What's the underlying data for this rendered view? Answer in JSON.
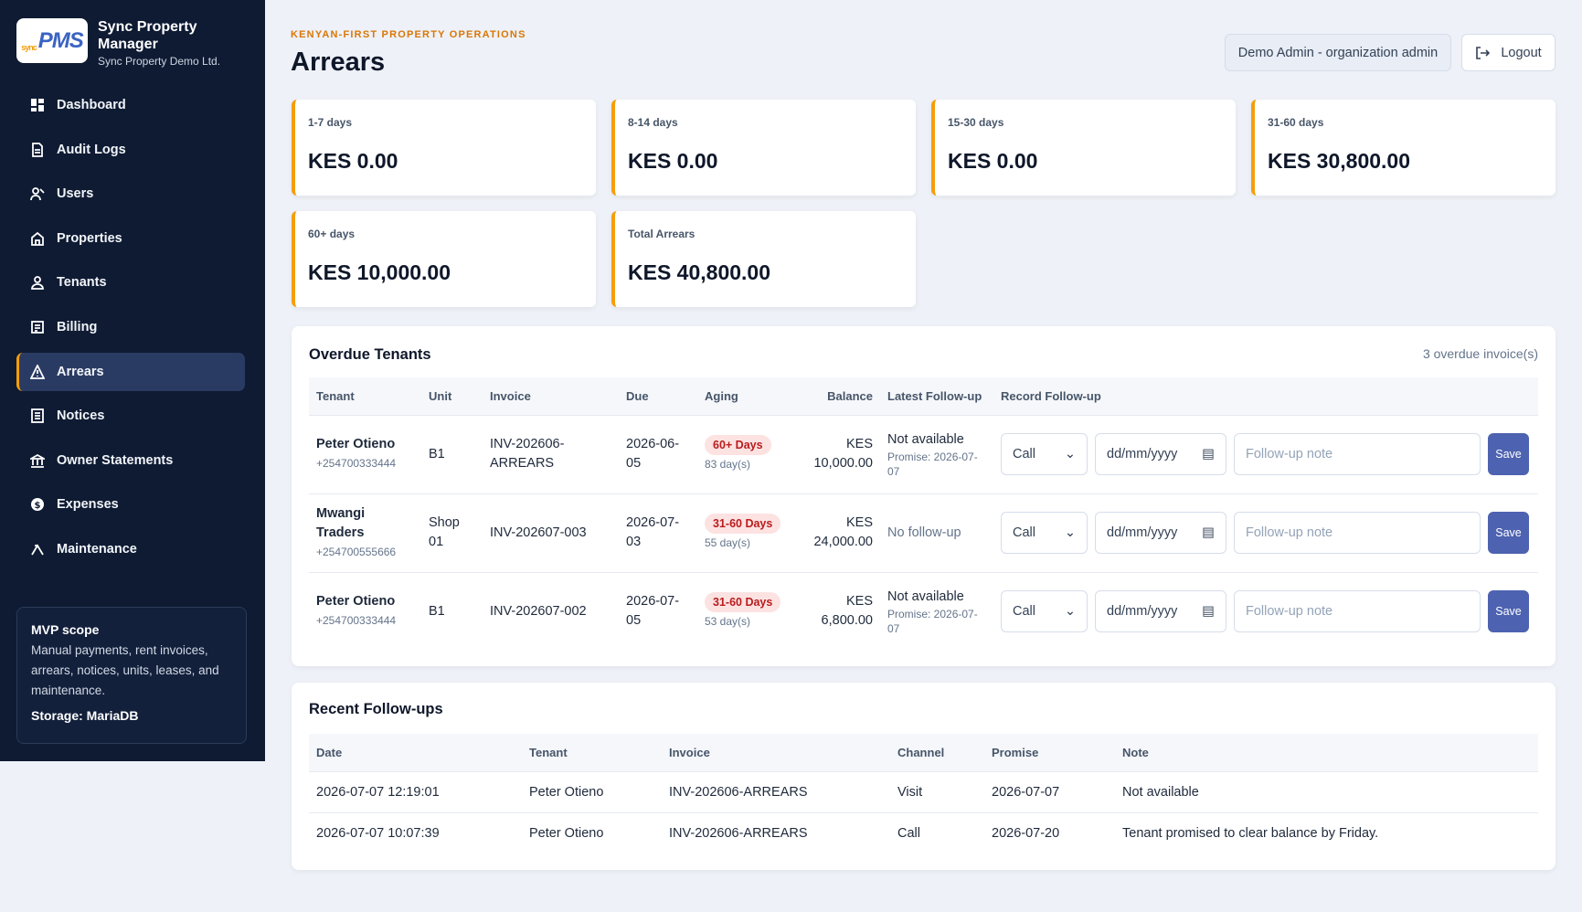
{
  "brand": {
    "logo_small": "sync",
    "logo_text": "PMS",
    "name": "Sync Property Manager",
    "org": "Sync Property Demo Ltd."
  },
  "nav": {
    "items": [
      {
        "label": "Dashboard",
        "icon": "dashboard-icon"
      },
      {
        "label": "Audit Logs",
        "icon": "document-icon"
      },
      {
        "label": "Users",
        "icon": "users-icon"
      },
      {
        "label": "Properties",
        "icon": "home-icon"
      },
      {
        "label": "Tenants",
        "icon": "person-icon"
      },
      {
        "label": "Billing",
        "icon": "receipt-icon"
      },
      {
        "label": "Arrears",
        "icon": "warning-icon",
        "active": true
      },
      {
        "label": "Notices",
        "icon": "notice-icon"
      },
      {
        "label": "Owner Statements",
        "icon": "bank-icon"
      },
      {
        "label": "Expenses",
        "icon": "dollar-icon"
      },
      {
        "label": "Maintenance",
        "icon": "wrench-icon"
      }
    ]
  },
  "scope": {
    "title": "MVP scope",
    "text": "Manual payments, rent invoices, arrears, notices, units, leases, and maintenance.",
    "storage": "Storage: MariaDB"
  },
  "header": {
    "eyebrow": "KENYAN-FIRST PROPERTY OPERATIONS",
    "title": "Arrears",
    "user": "Demo Admin - organization admin",
    "logout": "Logout"
  },
  "cards": [
    {
      "label": "1-7 days",
      "value": "KES 0.00"
    },
    {
      "label": "8-14 days",
      "value": "KES 0.00"
    },
    {
      "label": "15-30 days",
      "value": "KES 0.00"
    },
    {
      "label": "31-60 days",
      "value": "KES 30,800.00"
    },
    {
      "label": "60+ days",
      "value": "KES 10,000.00"
    },
    {
      "label": "Total Arrears",
      "value": "KES 40,800.00"
    }
  ],
  "overdue": {
    "title": "Overdue Tenants",
    "meta": "3 overdue invoice(s)",
    "columns": [
      "Tenant",
      "Unit",
      "Invoice",
      "Due",
      "Aging",
      "Balance",
      "Latest Follow-up",
      "Record Follow-up"
    ],
    "rows": [
      {
        "tenant": "Peter Otieno",
        "phone": "+254700333444",
        "unit": "B1",
        "invoice": "INV-202606-ARREARS",
        "due": "2026-06-05",
        "aging": "60+ Days",
        "days": "83 day(s)",
        "balance": "KES 10,000.00",
        "followup": "Not available",
        "promise": "Promise: 2026-07-07",
        "channel": "Call",
        "date_placeholder": "dd/mm/yyyy",
        "note_placeholder": "Follow-up note",
        "save": "Save"
      },
      {
        "tenant": "Mwangi Traders",
        "phone": "+254700555666",
        "unit": "Shop 01",
        "invoice": "INV-202607-003",
        "due": "2026-07-03",
        "aging": "31-60 Days",
        "days": "55 day(s)",
        "balance": "KES 24,000.00",
        "followup": "No follow-up",
        "promise": "",
        "channel": "Call",
        "date_placeholder": "dd/mm/yyyy",
        "note_placeholder": "Follow-up note",
        "save": "Save"
      },
      {
        "tenant": "Peter Otieno",
        "phone": "+254700333444",
        "unit": "B1",
        "invoice": "INV-202607-002",
        "due": "2026-07-05",
        "aging": "31-60 Days",
        "days": "53 day(s)",
        "balance": "KES 6,800.00",
        "followup": "Not available",
        "promise": "Promise: 2026-07-07",
        "channel": "Call",
        "date_placeholder": "dd/mm/yyyy",
        "note_placeholder": "Follow-up note",
        "save": "Save"
      }
    ]
  },
  "recent": {
    "title": "Recent Follow-ups",
    "columns": [
      "Date",
      "Tenant",
      "Invoice",
      "Channel",
      "Promise",
      "Note"
    ],
    "rows": [
      {
        "date": "2026-07-07 12:19:01",
        "tenant": "Peter Otieno",
        "invoice": "INV-202606-ARREARS",
        "channel": "Visit",
        "promise": "2026-07-07",
        "note": "Not available"
      },
      {
        "date": "2026-07-07 10:07:39",
        "tenant": "Peter Otieno",
        "invoice": "INV-202606-ARREARS",
        "channel": "Call",
        "promise": "2026-07-20",
        "note": "Tenant promised to clear balance by Friday."
      }
    ]
  },
  "colors": {
    "accent": "#f59e0b",
    "sidebar": "#0f1b33",
    "primary_button": "#4d62b0",
    "badge_bg": "#fde2e2",
    "badge_text": "#b91c1c"
  }
}
